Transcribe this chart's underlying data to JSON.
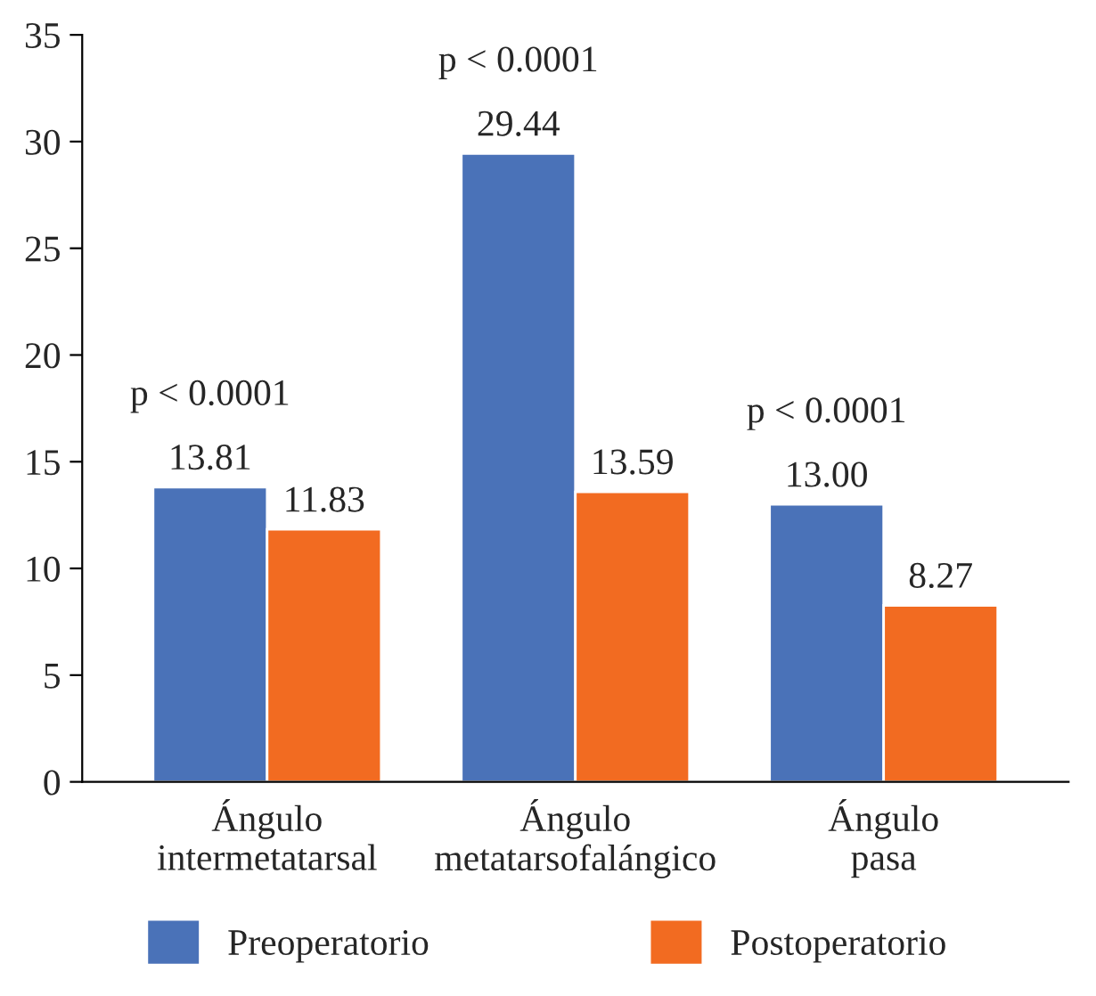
{
  "chart_data": {
    "type": "bar",
    "categories": [
      "Ángulo\nintermetatarsal",
      "Ángulo\nmetatarsofalángico",
      "Ángulo\npasa"
    ],
    "series": [
      {
        "name": "Preoperatorio",
        "color": "#4a72b8",
        "values": [
          13.81,
          29.44,
          13.0
        ],
        "value_labels": [
          "13.81",
          "29.44",
          "13.00"
        ]
      },
      {
        "name": "Postoperatorio",
        "color": "#f26b21",
        "values": [
          11.83,
          13.59,
          8.27
        ],
        "value_labels": [
          "11.83",
          "13.59",
          "8.27"
        ]
      }
    ],
    "ylim": [
      0,
      35
    ],
    "yticks": [
      0,
      5,
      10,
      15,
      20,
      25,
      30,
      35
    ],
    "annotations": [
      "p < 0.0001",
      "p < 0.0001",
      "p < 0.0001"
    ],
    "grid": false,
    "legend": "bottom"
  }
}
